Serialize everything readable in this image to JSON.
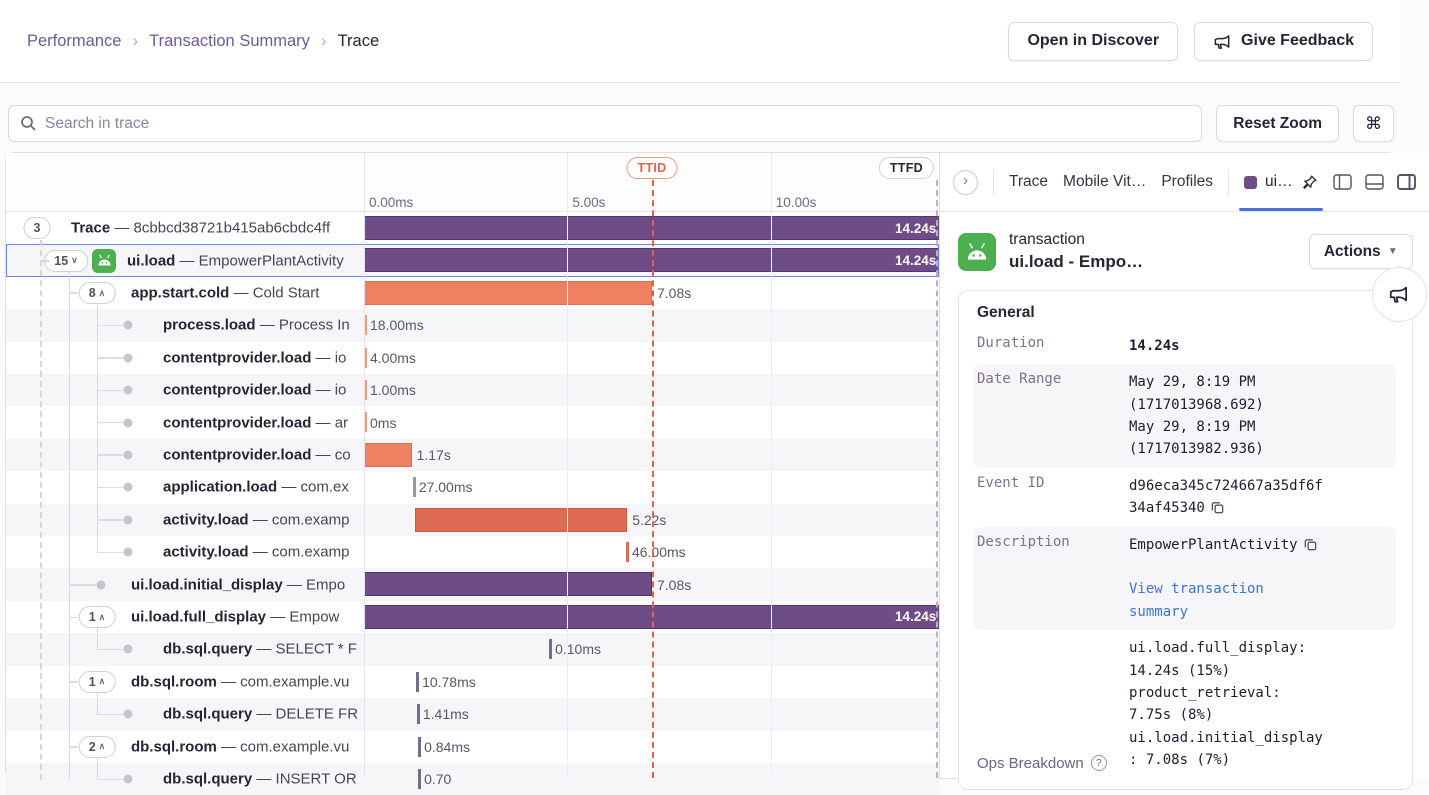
{
  "colors": {
    "accent_purple": "#6e4d87",
    "bar_orange": "#ef8163",
    "bar_red": "#dc6a55",
    "ttid_red": "#e8604c",
    "selected_blue": "#6d86ea",
    "tab_underline_blue": "#4a72d8",
    "link_blue": "#3c74db",
    "android_green": "#4caf50"
  },
  "topbar": {
    "breadcrumbs": [
      "Performance",
      "Transaction Summary",
      "Trace"
    ],
    "open_in_discover": "Open in Discover",
    "give_feedback": "Give Feedback"
  },
  "toolbar": {
    "search_placeholder": "Search in trace",
    "reset_zoom": "Reset Zoom",
    "shortcut_key": "⌘"
  },
  "chart": {
    "axis_ticks": [
      {
        "label": "0.00ms",
        "s": 0
      },
      {
        "label": "5.00s",
        "s": 5
      },
      {
        "label": "10.00s",
        "s": 10
      }
    ],
    "ttid": {
      "label": "TTID",
      "s": 7.08
    },
    "ttfd": {
      "label": "TTFD",
      "s": 14.24
    }
  },
  "trace": {
    "rows": [
      {
        "op": "Trace",
        "desc": "8cbbcd38721b415ab6cbdc4ff",
        "badge": "3",
        "chevron": "",
        "depth": 0,
        "type": "bar",
        "color": "purple",
        "start_s": 0,
        "duration_s": 14.24,
        "label": "14.24s",
        "label_inside": true
      },
      {
        "op": "ui.load",
        "desc": "EmpowerPlantActivity",
        "badge": "15",
        "chevron": "down",
        "depth": 1,
        "icon": "android",
        "type": "bar",
        "color": "purple",
        "start_s": 0,
        "duration_s": 14.24,
        "label": "14.24s",
        "label_inside": true,
        "selected": true
      },
      {
        "op": "app.start.cold",
        "desc": "Cold Start",
        "badge": "8",
        "chevron": "up",
        "depth": 2,
        "type": "bar",
        "color": "orange",
        "start_s": 0,
        "duration_s": 7.08,
        "label": "7.08s"
      },
      {
        "op": "process.load",
        "desc": "Process In",
        "dot": true,
        "depth": 3,
        "type": "tick",
        "color": "tick_orange",
        "start_s": 0,
        "label": "18.00ms"
      },
      {
        "op": "contentprovider.load",
        "desc": "io",
        "dot": true,
        "depth": 3,
        "type": "tick",
        "color": "tick_orange",
        "start_s": 0,
        "label": "4.00ms"
      },
      {
        "op": "contentprovider.load",
        "desc": "io",
        "dot": true,
        "depth": 3,
        "type": "tick",
        "color": "tick_orange",
        "start_s": 0,
        "label": "1.00ms"
      },
      {
        "op": "contentprovider.load",
        "desc": "ar",
        "dot": true,
        "depth": 3,
        "type": "tick",
        "color": "tick_orange",
        "start_s": 0,
        "label": "0ms"
      },
      {
        "op": "contentprovider.load",
        "desc": "co",
        "dot": true,
        "depth": 3,
        "type": "bar",
        "color": "orange",
        "start_s": 0,
        "duration_s": 1.17,
        "label": "1.17s"
      },
      {
        "op": "application.load",
        "desc": "com.ex",
        "dot": true,
        "depth": 3,
        "type": "tick",
        "color": "tick_gray",
        "start_s": 1.2,
        "label": "27.00ms"
      },
      {
        "op": "activity.load",
        "desc": "com.examp",
        "dot": true,
        "depth": 3,
        "type": "bar",
        "color": "red",
        "start_s": 1.25,
        "duration_s": 5.22,
        "label": "5.22s"
      },
      {
        "op": "activity.load",
        "desc": "com.examp",
        "dot": true,
        "depth": 3,
        "type": "tick",
        "color": "tick_red",
        "start_s": 6.44,
        "label": "46.00ms"
      },
      {
        "op": "ui.load.initial_display",
        "desc": "Empo",
        "dot": true,
        "depth": 2,
        "type": "bar",
        "color": "purple",
        "start_s": 0,
        "duration_s": 7.08,
        "label": "7.08s"
      },
      {
        "op": "ui.load.full_display",
        "desc": "Empow",
        "badge": "1",
        "chevron": "up",
        "depth": 2,
        "type": "bar",
        "color": "purple",
        "start_s": 0,
        "duration_s": 14.24,
        "label": "14.24s",
        "label_inside": true
      },
      {
        "op": "db.sql.query",
        "desc": "SELECT * F",
        "dot": true,
        "depth": 3,
        "type": "tick",
        "color": "tick_purple",
        "start_s": 4.55,
        "label": "0.10ms"
      },
      {
        "op": "db.sql.room",
        "desc": "com.example.vu",
        "badge": "1",
        "chevron": "up",
        "depth": 2,
        "type": "tick",
        "color": "tick_purple",
        "start_s": 1.28,
        "label": "10.78ms"
      },
      {
        "op": "db.sql.query",
        "desc": "DELETE FR",
        "dot": true,
        "depth": 3,
        "type": "tick",
        "color": "tick_purple",
        "start_s": 1.3,
        "label": "1.41ms"
      },
      {
        "op": "db.sql.room",
        "desc": "com.example.vu",
        "badge": "2",
        "chevron": "up",
        "depth": 2,
        "type": "tick",
        "color": "tick_purple",
        "start_s": 1.33,
        "label": "0.84ms"
      },
      {
        "op": "db.sql.query",
        "desc": "INSERT OR",
        "dot": true,
        "depth": 3,
        "type": "tick",
        "color": "tick_purple",
        "start_s": 1.33,
        "label": "0.70"
      }
    ]
  },
  "panel": {
    "collapse_glyph": "›",
    "tabs": [
      "Trace",
      "Mobile Vit…",
      "Profiles"
    ],
    "active_tab": "ui…",
    "transaction": {
      "type_label": "transaction",
      "name": "ui.load - Empo…",
      "actions_label": "Actions"
    },
    "general": {
      "title": "General",
      "duration": {
        "label": "Duration",
        "value": "14.24s"
      },
      "date_range": {
        "label": "Date Range",
        "lines": [
          "May 29, 8:19 PM",
          "(1717013968.692)",
          "May 29, 8:19 PM",
          "(1717013982.936)"
        ]
      },
      "event_id": {
        "label": "Event ID",
        "value": "d96eca345c724667a35df6f34af45340"
      },
      "description": {
        "label": "Description",
        "value": "EmpowerPlantActivity",
        "link": "View transaction summary"
      },
      "ops_breakdown": {
        "label": "Ops Breakdown",
        "entries": [
          {
            "name": "ui.load.full_display:",
            "value": "14.24s (15%)"
          },
          {
            "name": "product_retrieval:",
            "value": "7.75s (8%)"
          },
          {
            "name": "ui.load.initial_display:",
            "value": "7.08s (7%)"
          }
        ]
      }
    }
  }
}
